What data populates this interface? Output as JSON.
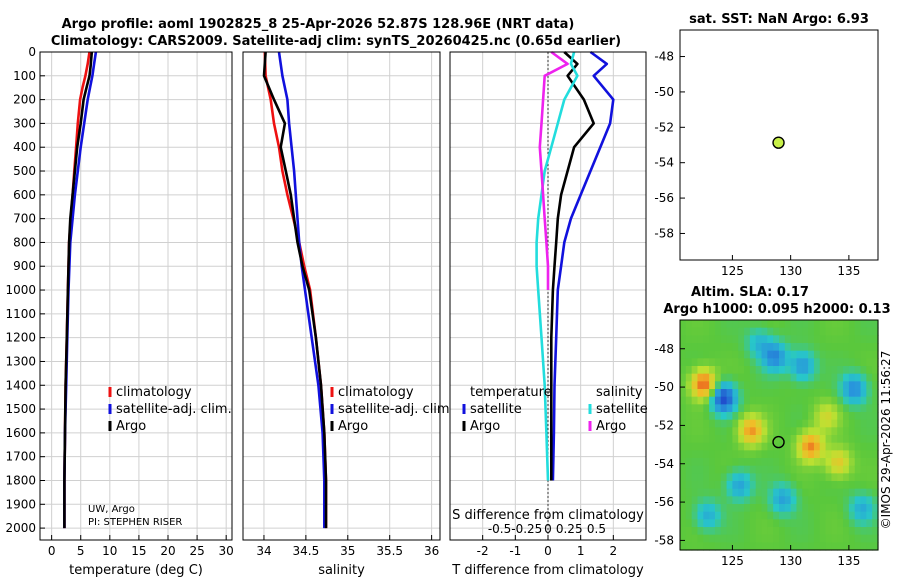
{
  "header": {
    "line1": "Argo profile: aoml 1902825_8 25-Apr-2026 52.87S 128.96E (NRT data)",
    "line2": "Climatology: CARS2009. Satellite-adj clim: synTS_20260425.nc (0.65d earlier)"
  },
  "credits": {
    "line1": "UW, Argo",
    "line2": "PI: STEPHEN RISER"
  },
  "stamp": "©IMOS 29-Apr-2026 11:56:27",
  "colors": {
    "climatology": "#ee1111",
    "satellite": "#1111dd",
    "argo": "#000000",
    "cyan": "#22dddd",
    "magenta": "#ee22ee",
    "dot": "#c8f048"
  },
  "chart_data": [
    {
      "id": "temperature",
      "type": "line",
      "xlabel": "temperature (deg C)",
      "ylabel": "",
      "xlim": [
        -2,
        31
      ],
      "ylim": [
        2050,
        0
      ],
      "xticks": [
        0,
        5,
        10,
        15,
        20,
        25,
        30
      ],
      "xtick_labels": [
        "0",
        "5",
        "10",
        "15",
        "20",
        "25",
        "30"
      ],
      "yticks": [
        0,
        100,
        200,
        300,
        400,
        500,
        600,
        700,
        800,
        900,
        1000,
        1100,
        1200,
        1300,
        1400,
        1500,
        1600,
        1700,
        1800,
        1900,
        2000
      ],
      "ytick_labels": [
        "0",
        "100",
        "200",
        "300",
        "400",
        "500",
        "600",
        "700",
        "800",
        "900",
        "1000",
        "1100",
        "1200",
        "1300",
        "1400",
        "1500",
        "1600",
        "1700",
        "1800",
        "1900",
        "2000"
      ],
      "grid": true,
      "legend": [
        "climatology",
        "satellite-adj. clim.",
        "Argo"
      ],
      "series": [
        {
          "name": "climatology",
          "color": "#ee1111",
          "x": [
            6.5,
            6.2,
            5.8,
            5.3,
            4.9,
            4.5,
            4.2,
            3.9,
            3.6,
            3.3,
            3.0,
            2.8,
            2.6,
            2.4,
            2.3,
            2.2,
            2.2
          ],
          "y": [
            0,
            50,
            100,
            150,
            200,
            300,
            400,
            500,
            600,
            700,
            800,
            1000,
            1200,
            1400,
            1600,
            1800,
            2000
          ]
        },
        {
          "name": "satellite-adj. clim.",
          "color": "#1111dd",
          "x": [
            7.6,
            7.3,
            7.0,
            6.6,
            6.2,
            5.6,
            5.0,
            4.5,
            4.0,
            3.6,
            3.2,
            2.9,
            2.7,
            2.5,
            2.3,
            2.2,
            2.2
          ],
          "y": [
            0,
            50,
            100,
            150,
            200,
            300,
            400,
            500,
            600,
            700,
            800,
            1000,
            1200,
            1400,
            1600,
            1800,
            2000
          ]
        },
        {
          "name": "Argo",
          "color": "#000000",
          "x": [
            6.9,
            6.7,
            6.5,
            6.0,
            5.5,
            5.0,
            4.4,
            4.0,
            3.6,
            3.2,
            3.0,
            2.8,
            2.6,
            2.4,
            2.3,
            2.2,
            2.2
          ],
          "y": [
            0,
            60,
            100,
            150,
            200,
            300,
            400,
            500,
            600,
            700,
            800,
            1000,
            1200,
            1400,
            1600,
            1800,
            2000
          ]
        }
      ]
    },
    {
      "id": "salinity",
      "type": "line",
      "xlabel": "salinity",
      "ylabel": "",
      "xlim": [
        33.75,
        36.1
      ],
      "ylim": [
        2050,
        0
      ],
      "xticks": [
        34,
        34.5,
        35,
        35.5,
        36
      ],
      "xtick_labels": [
        "34",
        "34.5",
        "35",
        "35.5",
        "36"
      ],
      "grid": true,
      "legend": [
        "climatology",
        "satellite-adj. clim.",
        "Argo"
      ],
      "series": [
        {
          "name": "climatology",
          "color": "#ee1111",
          "x": [
            34.01,
            34.02,
            34.08,
            34.12,
            34.18,
            34.22,
            34.28,
            34.35,
            34.42,
            34.48,
            34.55,
            34.62,
            34.68,
            34.72,
            34.74,
            34.74
          ],
          "y": [
            0,
            100,
            200,
            300,
            400,
            500,
            600,
            700,
            800,
            900,
            1000,
            1200,
            1400,
            1600,
            1800,
            2000
          ]
        },
        {
          "name": "satellite-adj. clim.",
          "color": "#1111dd",
          "x": [
            34.18,
            34.22,
            34.28,
            34.3,
            34.33,
            34.36,
            34.38,
            34.4,
            34.42,
            34.45,
            34.49,
            34.57,
            34.65,
            34.7,
            34.72,
            34.72
          ],
          "y": [
            0,
            100,
            200,
            300,
            400,
            500,
            600,
            700,
            800,
            900,
            1000,
            1200,
            1400,
            1600,
            1800,
            2000
          ]
        },
        {
          "name": "Argo",
          "color": "#000000",
          "x": [
            34.02,
            34.0,
            34.12,
            34.25,
            34.2,
            34.26,
            34.32,
            34.36,
            34.4,
            34.46,
            34.54,
            34.62,
            34.68,
            34.72,
            34.74,
            34.74
          ],
          "y": [
            0,
            100,
            200,
            300,
            400,
            500,
            600,
            700,
            800,
            900,
            1000,
            1200,
            1400,
            1600,
            1800,
            2000
          ]
        }
      ]
    },
    {
      "id": "difference",
      "type": "line",
      "xlabel": "T difference from climatology",
      "x2label": "S difference from climatology",
      "ylabel": "",
      "xlim": [
        -3,
        3
      ],
      "ylim": [
        2050,
        0
      ],
      "xticks": [
        -2,
        -1,
        0,
        1,
        2
      ],
      "xtick_labels": [
        "-2",
        "-1",
        "0",
        "1",
        "2"
      ],
      "x2tick_labels": [
        "-0.5",
        "-0.25",
        "0",
        "0.25",
        "0.5"
      ],
      "grid": true,
      "legend_left": [
        "temperature",
        "satellite",
        "Argo"
      ],
      "legend_right": [
        "salinity",
        "satellite",
        "Argo"
      ],
      "series": [
        {
          "name": "temperature satellite",
          "color": "#1111dd",
          "x": [
            1.3,
            1.8,
            1.4,
            2.0,
            1.9,
            1.6,
            1.3,
            1.0,
            0.7,
            0.5,
            0.4,
            0.3,
            0.25,
            0.2,
            0.18,
            0.15
          ],
          "y": [
            0,
            50,
            100,
            200,
            300,
            400,
            500,
            600,
            700,
            800,
            900,
            1000,
            1200,
            1400,
            1600,
            1800
          ]
        },
        {
          "name": "temperature Argo",
          "color": "#000000",
          "x": [
            0.5,
            0.9,
            0.6,
            1.1,
            1.4,
            0.8,
            0.6,
            0.4,
            0.3,
            0.25,
            0.2,
            0.15,
            0.1,
            0.1,
            0.1,
            0.1
          ],
          "y": [
            0,
            50,
            100,
            200,
            300,
            400,
            500,
            600,
            700,
            800,
            900,
            1000,
            1200,
            1400,
            1600,
            1800
          ]
        },
        {
          "name": "salinity satellite",
          "color": "#22dddd",
          "x": [
            0.8,
            0.7,
            0.9,
            0.5,
            0.3,
            0.1,
            -0.1,
            -0.2,
            -0.3,
            -0.35,
            -0.35,
            -0.3,
            -0.2,
            -0.1,
            -0.05,
            0
          ],
          "y": [
            0,
            50,
            100,
            200,
            300,
            400,
            500,
            600,
            700,
            800,
            900,
            1000,
            1200,
            1400,
            1600,
            1800
          ]
        },
        {
          "name": "salinity Argo",
          "color": "#ee22ee",
          "x": [
            0.1,
            0.6,
            -0.1,
            -0.15,
            -0.2,
            -0.25,
            -0.2,
            -0.15,
            -0.1,
            -0.05,
            0,
            0
          ],
          "y": [
            0,
            50,
            100,
            200,
            300,
            400,
            500,
            600,
            700,
            800,
            900,
            1000
          ]
        }
      ]
    },
    {
      "id": "sst-map",
      "type": "scatter",
      "title": "sat. SST: NaN Argo: 6.93",
      "xlim": [
        120.5,
        137.5
      ],
      "ylim": [
        -59.5,
        -46.5
      ],
      "xticks": [
        125,
        130,
        135
      ],
      "xtick_labels": [
        "125",
        "130",
        "135"
      ],
      "yticks": [
        -48,
        -50,
        -52,
        -54,
        -56,
        -58
      ],
      "ytick_labels": [
        "-48",
        "-50",
        "-52",
        "-54",
        "-56",
        "-58"
      ],
      "points": [
        {
          "label": "Argo",
          "x": 128.96,
          "y": -52.87,
          "value": 6.93
        }
      ]
    },
    {
      "id": "sla-map",
      "type": "heatmap",
      "title": "Altim. SLA: 0.17",
      "subtitle": "Argo h1000: 0.095 h2000: 0.13",
      "xlim": [
        120.5,
        137.5
      ],
      "ylim": [
        -58.5,
        -46.5
      ],
      "xticks": [
        125,
        130,
        135
      ],
      "xtick_labels": [
        "125",
        "130",
        "135"
      ],
      "yticks": [
        -48,
        -50,
        -52,
        -54,
        -56,
        -58
      ],
      "ytick_labels": [
        "-48",
        "-50",
        "-52",
        "-54",
        "-56",
        "-58"
      ],
      "points": [
        {
          "label": "Argo",
          "x": 128.96,
          "y": -52.87,
          "value": 0.17
        }
      ]
    }
  ]
}
